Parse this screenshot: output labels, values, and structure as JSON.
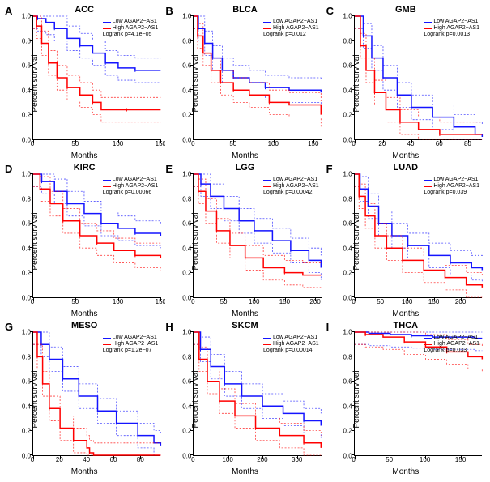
{
  "common": {
    "ylabel": "Percent survival",
    "xlabel": "Months",
    "gene": "AGAP2−AS1",
    "low_color": "#1414ff",
    "high_color": "#ff0000",
    "ci_dash": "2,2",
    "line_width": 1.5,
    "ci_width": 0.8,
    "yticks": [
      0.0,
      0.2,
      0.4,
      0.6,
      0.8,
      1.0
    ],
    "font_size_axis": 10,
    "font_size_tick": 8,
    "font_size_legend": 7,
    "font_size_title": 11,
    "font_size_letter": 13
  },
  "panels": [
    {
      "letter": "A",
      "title": "ACC",
      "p": "4.1e−05",
      "xmax": 150,
      "xticks": [
        0,
        50,
        100,
        150
      ],
      "low": [
        [
          0,
          1.0
        ],
        [
          5,
          0.98
        ],
        [
          15,
          0.95
        ],
        [
          25,
          0.9
        ],
        [
          40,
          0.82
        ],
        [
          55,
          0.76
        ],
        [
          70,
          0.7
        ],
        [
          85,
          0.62
        ],
        [
          100,
          0.58
        ],
        [
          120,
          0.56
        ],
        [
          150,
          0.56
        ]
      ],
      "high": [
        [
          0,
          1.0
        ],
        [
          4,
          0.92
        ],
        [
          10,
          0.78
        ],
        [
          18,
          0.62
        ],
        [
          28,
          0.5
        ],
        [
          40,
          0.42
        ],
        [
          55,
          0.36
        ],
        [
          70,
          0.3
        ],
        [
          80,
          0.24
        ],
        [
          110,
          0.24
        ],
        [
          150,
          0.24
        ]
      ]
    },
    {
      "letter": "B",
      "title": "BLCA",
      "p": "0.012",
      "xmax": 160,
      "xticks": [
        0,
        50,
        100,
        150
      ],
      "low": [
        [
          0,
          1.0
        ],
        [
          6,
          0.9
        ],
        [
          14,
          0.78
        ],
        [
          24,
          0.66
        ],
        [
          36,
          0.56
        ],
        [
          50,
          0.5
        ],
        [
          70,
          0.46
        ],
        [
          90,
          0.42
        ],
        [
          120,
          0.4
        ],
        [
          160,
          0.38
        ]
      ],
      "high": [
        [
          0,
          1.0
        ],
        [
          5,
          0.84
        ],
        [
          12,
          0.7
        ],
        [
          22,
          0.56
        ],
        [
          34,
          0.46
        ],
        [
          50,
          0.4
        ],
        [
          70,
          0.36
        ],
        [
          95,
          0.3
        ],
        [
          120,
          0.28
        ],
        [
          160,
          0.2
        ]
      ]
    },
    {
      "letter": "C",
      "title": "GMB",
      "p": "0.0013",
      "xmax": 90,
      "xticks": [
        0,
        20,
        40,
        60,
        80
      ],
      "low": [
        [
          0,
          1.0
        ],
        [
          6,
          0.84
        ],
        [
          12,
          0.66
        ],
        [
          20,
          0.5
        ],
        [
          30,
          0.36
        ],
        [
          40,
          0.26
        ],
        [
          55,
          0.18
        ],
        [
          70,
          0.1
        ],
        [
          85,
          0.04
        ],
        [
          90,
          0.02
        ]
      ],
      "high": [
        [
          0,
          1.0
        ],
        [
          4,
          0.76
        ],
        [
          8,
          0.56
        ],
        [
          14,
          0.38
        ],
        [
          22,
          0.24
        ],
        [
          32,
          0.14
        ],
        [
          45,
          0.08
        ],
        [
          60,
          0.04
        ],
        [
          80,
          0.04
        ],
        [
          90,
          0.04
        ]
      ]
    },
    {
      "letter": "D",
      "title": "KIRC",
      "p": "0.00066",
      "xmax": 150,
      "xticks": [
        0,
        50,
        100,
        150
      ],
      "low": [
        [
          0,
          1.0
        ],
        [
          10,
          0.94
        ],
        [
          25,
          0.86
        ],
        [
          40,
          0.76
        ],
        [
          60,
          0.68
        ],
        [
          80,
          0.6
        ],
        [
          100,
          0.56
        ],
        [
          120,
          0.52
        ],
        [
          150,
          0.5
        ]
      ],
      "high": [
        [
          0,
          1.0
        ],
        [
          8,
          0.88
        ],
        [
          20,
          0.76
        ],
        [
          35,
          0.62
        ],
        [
          55,
          0.5
        ],
        [
          75,
          0.44
        ],
        [
          95,
          0.38
        ],
        [
          120,
          0.34
        ],
        [
          150,
          0.32
        ]
      ]
    },
    {
      "letter": "E",
      "title": "LGG",
      "p": "0.00042",
      "xmax": 210,
      "xticks": [
        0,
        50,
        100,
        150,
        200
      ],
      "low": [
        [
          0,
          1.0
        ],
        [
          12,
          0.92
        ],
        [
          28,
          0.82
        ],
        [
          50,
          0.72
        ],
        [
          75,
          0.62
        ],
        [
          100,
          0.54
        ],
        [
          130,
          0.46
        ],
        [
          160,
          0.38
        ],
        [
          190,
          0.3
        ],
        [
          210,
          0.24
        ]
      ],
      "high": [
        [
          0,
          1.0
        ],
        [
          8,
          0.86
        ],
        [
          20,
          0.7
        ],
        [
          38,
          0.54
        ],
        [
          60,
          0.42
        ],
        [
          85,
          0.32
        ],
        [
          115,
          0.24
        ],
        [
          150,
          0.2
        ],
        [
          180,
          0.18
        ],
        [
          210,
          0.18
        ]
      ]
    },
    {
      "letter": "F",
      "title": "LUAD",
      "p": "0.039",
      "xmax": 240,
      "xticks": [
        0,
        50,
        100,
        150,
        200
      ],
      "low": [
        [
          0,
          1.0
        ],
        [
          10,
          0.88
        ],
        [
          25,
          0.74
        ],
        [
          45,
          0.6
        ],
        [
          70,
          0.5
        ],
        [
          100,
          0.42
        ],
        [
          140,
          0.34
        ],
        [
          180,
          0.28
        ],
        [
          220,
          0.24
        ],
        [
          240,
          0.22
        ]
      ],
      "high": [
        [
          0,
          1.0
        ],
        [
          8,
          0.82
        ],
        [
          20,
          0.66
        ],
        [
          38,
          0.5
        ],
        [
          60,
          0.4
        ],
        [
          90,
          0.3
        ],
        [
          130,
          0.22
        ],
        [
          170,
          0.16
        ],
        [
          210,
          0.1
        ],
        [
          240,
          0.08
        ]
      ]
    },
    {
      "letter": "G",
      "title": "MESO",
      "p": "1.2e−07",
      "xmax": 95,
      "xticks": [
        0,
        20,
        40,
        60,
        80
      ],
      "low": [
        [
          0,
          1.0
        ],
        [
          6,
          0.9
        ],
        [
          12,
          0.78
        ],
        [
          22,
          0.62
        ],
        [
          34,
          0.48
        ],
        [
          48,
          0.36
        ],
        [
          62,
          0.26
        ],
        [
          78,
          0.16
        ],
        [
          90,
          0.1
        ],
        [
          95,
          0.08
        ]
      ],
      "high": [
        [
          0,
          1.0
        ],
        [
          3,
          0.8
        ],
        [
          7,
          0.58
        ],
        [
          12,
          0.38
        ],
        [
          20,
          0.22
        ],
        [
          30,
          0.12
        ],
        [
          40,
          0.06
        ],
        [
          42,
          0.02
        ],
        [
          45,
          0.0
        ],
        [
          95,
          0.0
        ]
      ]
    },
    {
      "letter": "H",
      "title": "SKCM",
      "p": "0.00014",
      "xmax": 370,
      "xticks": [
        0,
        100,
        200,
        300
      ],
      "low": [
        [
          0,
          1.0
        ],
        [
          20,
          0.86
        ],
        [
          50,
          0.72
        ],
        [
          90,
          0.58
        ],
        [
          140,
          0.48
        ],
        [
          200,
          0.4
        ],
        [
          260,
          0.34
        ],
        [
          320,
          0.28
        ],
        [
          370,
          0.24
        ]
      ],
      "high": [
        [
          0,
          1.0
        ],
        [
          16,
          0.78
        ],
        [
          40,
          0.6
        ],
        [
          75,
          0.44
        ],
        [
          120,
          0.32
        ],
        [
          180,
          0.22
        ],
        [
          250,
          0.16
        ],
        [
          320,
          0.1
        ],
        [
          370,
          0.06
        ]
      ]
    },
    {
      "letter": "I",
      "title": "THCA",
      "p": "0.033",
      "xmax": 180,
      "xticks": [
        0,
        50,
        100,
        150
      ],
      "low": [
        [
          0,
          1.0
        ],
        [
          20,
          0.99
        ],
        [
          50,
          0.98
        ],
        [
          80,
          0.97
        ],
        [
          110,
          0.96
        ],
        [
          140,
          0.96
        ],
        [
          170,
          0.95
        ],
        [
          180,
          0.95
        ]
      ],
      "high": [
        [
          0,
          1.0
        ],
        [
          15,
          0.98
        ],
        [
          40,
          0.96
        ],
        [
          70,
          0.92
        ],
        [
          100,
          0.88
        ],
        [
          130,
          0.84
        ],
        [
          160,
          0.8
        ],
        [
          180,
          0.78
        ]
      ]
    }
  ]
}
